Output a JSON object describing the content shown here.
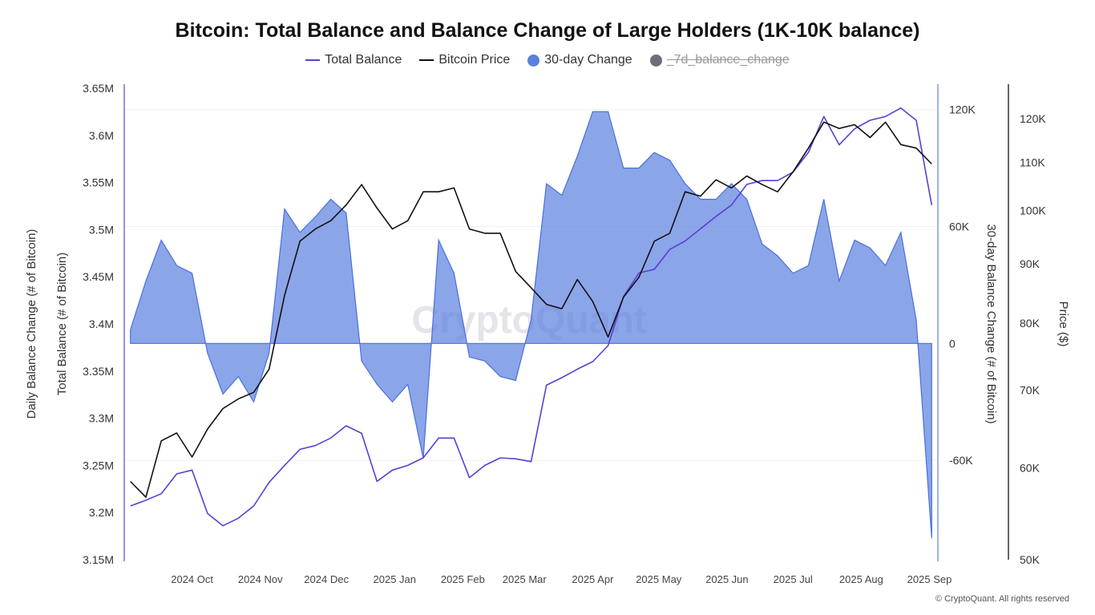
{
  "chart_data": {
    "type": "line",
    "title": "Bitcoin: Total Balance and Balance Change of Large Holders (1K-10K balance)",
    "legend": [
      {
        "name": "Total Balance",
        "color": "#5b3fd6",
        "marker": "line",
        "visible": true
      },
      {
        "name": "Bitcoin Price",
        "color": "#111111",
        "marker": "line",
        "visible": true
      },
      {
        "name": "30-day Change",
        "color": "#5a7fe0",
        "marker": "circle",
        "visible": true
      },
      {
        "name": "_7d_balance_change",
        "color": "#6e6e78",
        "marker": "circle",
        "visible": false
      }
    ],
    "legend_position": "top-center",
    "x": [
      "2024-09-03",
      "2024-09-10",
      "2024-09-17",
      "2024-09-24",
      "2024-10-01",
      "2024-10-08",
      "2024-10-15",
      "2024-10-22",
      "2024-10-29",
      "2024-11-05",
      "2024-11-12",
      "2024-11-19",
      "2024-11-26",
      "2024-12-03",
      "2024-12-10",
      "2024-12-17",
      "2024-12-24",
      "2024-12-31",
      "2025-01-07",
      "2025-01-14",
      "2025-01-21",
      "2025-01-28",
      "2025-02-04",
      "2025-02-11",
      "2025-02-18",
      "2025-02-25",
      "2025-03-04",
      "2025-03-11",
      "2025-03-18",
      "2025-03-25",
      "2025-04-01",
      "2025-04-08",
      "2025-04-15",
      "2025-04-22",
      "2025-04-29",
      "2025-05-06",
      "2025-05-13",
      "2025-05-20",
      "2025-05-27",
      "2025-06-03",
      "2025-06-10",
      "2025-06-17",
      "2025-06-24",
      "2025-07-01",
      "2025-07-08",
      "2025-07-15",
      "2025-07-22",
      "2025-07-29",
      "2025-08-05",
      "2025-08-12",
      "2025-08-19",
      "2025-08-26",
      "2025-09-02"
    ],
    "xlim": [
      "2024-09-02",
      "2025-09-03"
    ],
    "x_ticks": [
      "2024 Oct",
      "2024 Nov",
      "2024 Dec",
      "2025 Jan",
      "2025 Feb",
      "2025 Mar",
      "2025 Apr",
      "2025 May",
      "2025 Jun",
      "2025 Jul",
      "2025 Aug",
      "2025 Sep"
    ],
    "x_tick_dates": [
      "2024-10-01",
      "2024-11-01",
      "2024-12-01",
      "2025-01-01",
      "2025-02-01",
      "2025-03-01",
      "2025-04-01",
      "2025-05-01",
      "2025-06-01",
      "2025-07-01",
      "2025-08-01",
      "2025-09-01"
    ],
    "series": [
      {
        "name": "Total Balance",
        "axis": "left",
        "unit": "M BTC",
        "values": [
          3.207,
          3.213,
          3.22,
          3.241,
          3.245,
          3.199,
          3.186,
          3.194,
          3.207,
          3.232,
          3.25,
          3.267,
          3.271,
          3.279,
          3.292,
          3.284,
          3.233,
          3.245,
          3.25,
          3.258,
          3.279,
          3.279,
          3.237,
          3.25,
          3.258,
          3.257,
          3.254,
          3.335,
          3.343,
          3.352,
          3.36,
          3.377,
          3.429,
          3.454,
          3.458,
          3.479,
          3.488,
          3.501,
          3.514,
          3.526,
          3.548,
          3.552,
          3.552,
          3.561,
          3.582,
          3.62,
          3.59,
          3.607,
          3.616,
          3.62,
          3.629,
          3.616,
          3.526
        ]
      },
      {
        "name": "Bitcoin Price",
        "axis": "price",
        "unit": "K USD",
        "values": [
          58.4,
          56.6,
          63.3,
          64.3,
          61.3,
          64.8,
          67.5,
          68.8,
          69.7,
          73.0,
          84.5,
          94.1,
          96.4,
          98.0,
          101.1,
          105.3,
          100.5,
          96.4,
          98.0,
          103.8,
          103.8,
          104.6,
          96.4,
          95.6,
          95.6,
          88.6,
          85.8,
          83.0,
          82.3,
          87.2,
          83.5,
          77.8,
          84.2,
          87.6,
          94.1,
          95.6,
          103.8,
          102.9,
          106.3,
          104.6,
          107.1,
          105.3,
          103.8,
          108.0,
          113.2,
          119.2,
          117.7,
          118.6,
          115.6,
          119.2,
          114.0,
          113.2,
          109.7
        ]
      },
      {
        "name": "30-day Change",
        "axis": "change",
        "unit": "K BTC",
        "type": "area",
        "values": [
          7,
          32,
          53,
          40,
          36,
          -5,
          -26,
          -17,
          -30,
          -5,
          69,
          57,
          65,
          74,
          67,
          -9,
          -21,
          -30,
          -21,
          -59,
          53,
          36,
          -7,
          -9,
          -17,
          -19,
          12,
          82,
          76,
          96,
          119,
          119,
          90,
          90,
          98,
          94,
          82,
          74,
          74,
          82,
          74,
          51,
          45,
          36,
          40,
          74,
          32,
          53,
          49,
          40,
          57,
          12,
          -100
        ]
      }
    ],
    "axes": {
      "left": {
        "label": "Total Balance (# of Bitcoin)",
        "outer_label": "Daily Balance Change (# of Bitcoin)",
        "ticks": [
          "3.65M",
          "3.6M",
          "3.55M",
          "3.5M",
          "3.45M",
          "3.4M",
          "3.35M",
          "3.3M",
          "3.25M",
          "3.2M",
          "3.15M"
        ],
        "tick_values": [
          3.65,
          3.6,
          3.55,
          3.5,
          3.45,
          3.4,
          3.35,
          3.3,
          3.25,
          3.2,
          3.15
        ],
        "range": [
          3.15,
          3.65
        ]
      },
      "change": {
        "label": "30-day Balance Change (# of Bitcoin)",
        "ticks": [
          "120K",
          "60K",
          "0",
          "-60K"
        ],
        "tick_values": [
          120,
          60,
          0,
          -60
        ],
        "range": [
          -111,
          131
        ]
      },
      "price": {
        "label": "Price ($)",
        "scale": "log",
        "ticks": [
          "120K",
          "110K",
          "100K",
          "90K",
          "80K",
          "70K",
          "60K",
          "50K"
        ],
        "tick_values": [
          120,
          110,
          100,
          90,
          80,
          70,
          60,
          50
        ],
        "range": [
          50,
          127.5
        ]
      }
    },
    "grid": true
  },
  "watermark": "CryptoQuant",
  "footer": "© CryptoQuant. All rights reserved"
}
